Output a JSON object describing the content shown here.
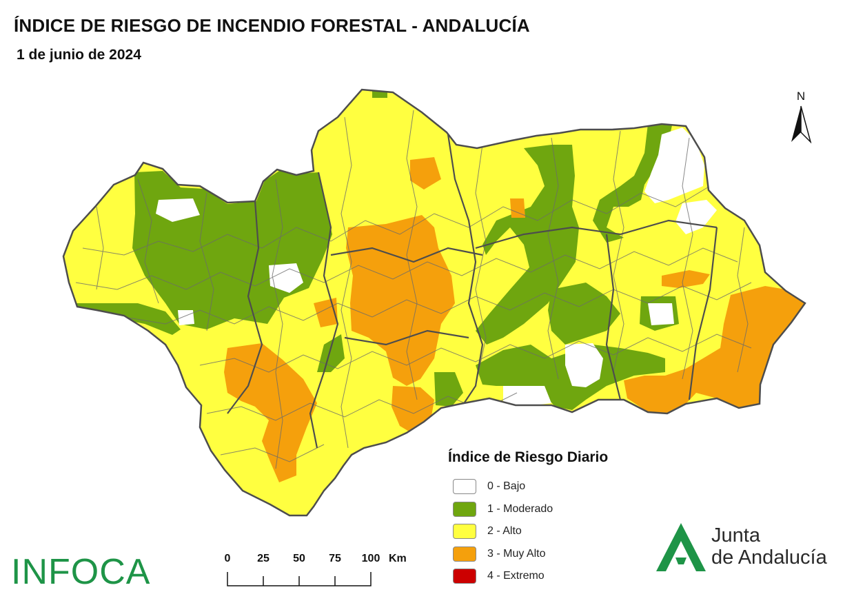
{
  "header": {
    "title": "ÍNDICE DE RIESGO DE INCENDIO FORESTAL - ANDALUCÍA",
    "date": "1 de junio de 2024"
  },
  "north_arrow": {
    "label": "N"
  },
  "legend": {
    "title": "Índice de Riesgo Diario",
    "items": [
      {
        "label": "0 - Bajo",
        "color": "#ffffff"
      },
      {
        "label": "1 - Moderado",
        "color": "#6fa60f"
      },
      {
        "label": "2 - Alto",
        "color": "#ffff40"
      },
      {
        "label": "3 - Muy Alto",
        "color": "#f5a00c"
      },
      {
        "label": "4 - Extremo",
        "color": "#cc0000"
      }
    ]
  },
  "scale_bar": {
    "ticks": [
      "0",
      "25",
      "50",
      "75",
      "100"
    ],
    "unit": "Km"
  },
  "logos": {
    "infoca": "INFOCA",
    "junta_line1": "Junta",
    "junta_line2": "de Andalucía",
    "junta_color": "#1e9447"
  },
  "colors": {
    "boundary": "#555555",
    "bajo": "#ffffff",
    "moderado": "#6fa60f",
    "alto": "#ffff40",
    "muy_alto": "#f5a00c"
  }
}
